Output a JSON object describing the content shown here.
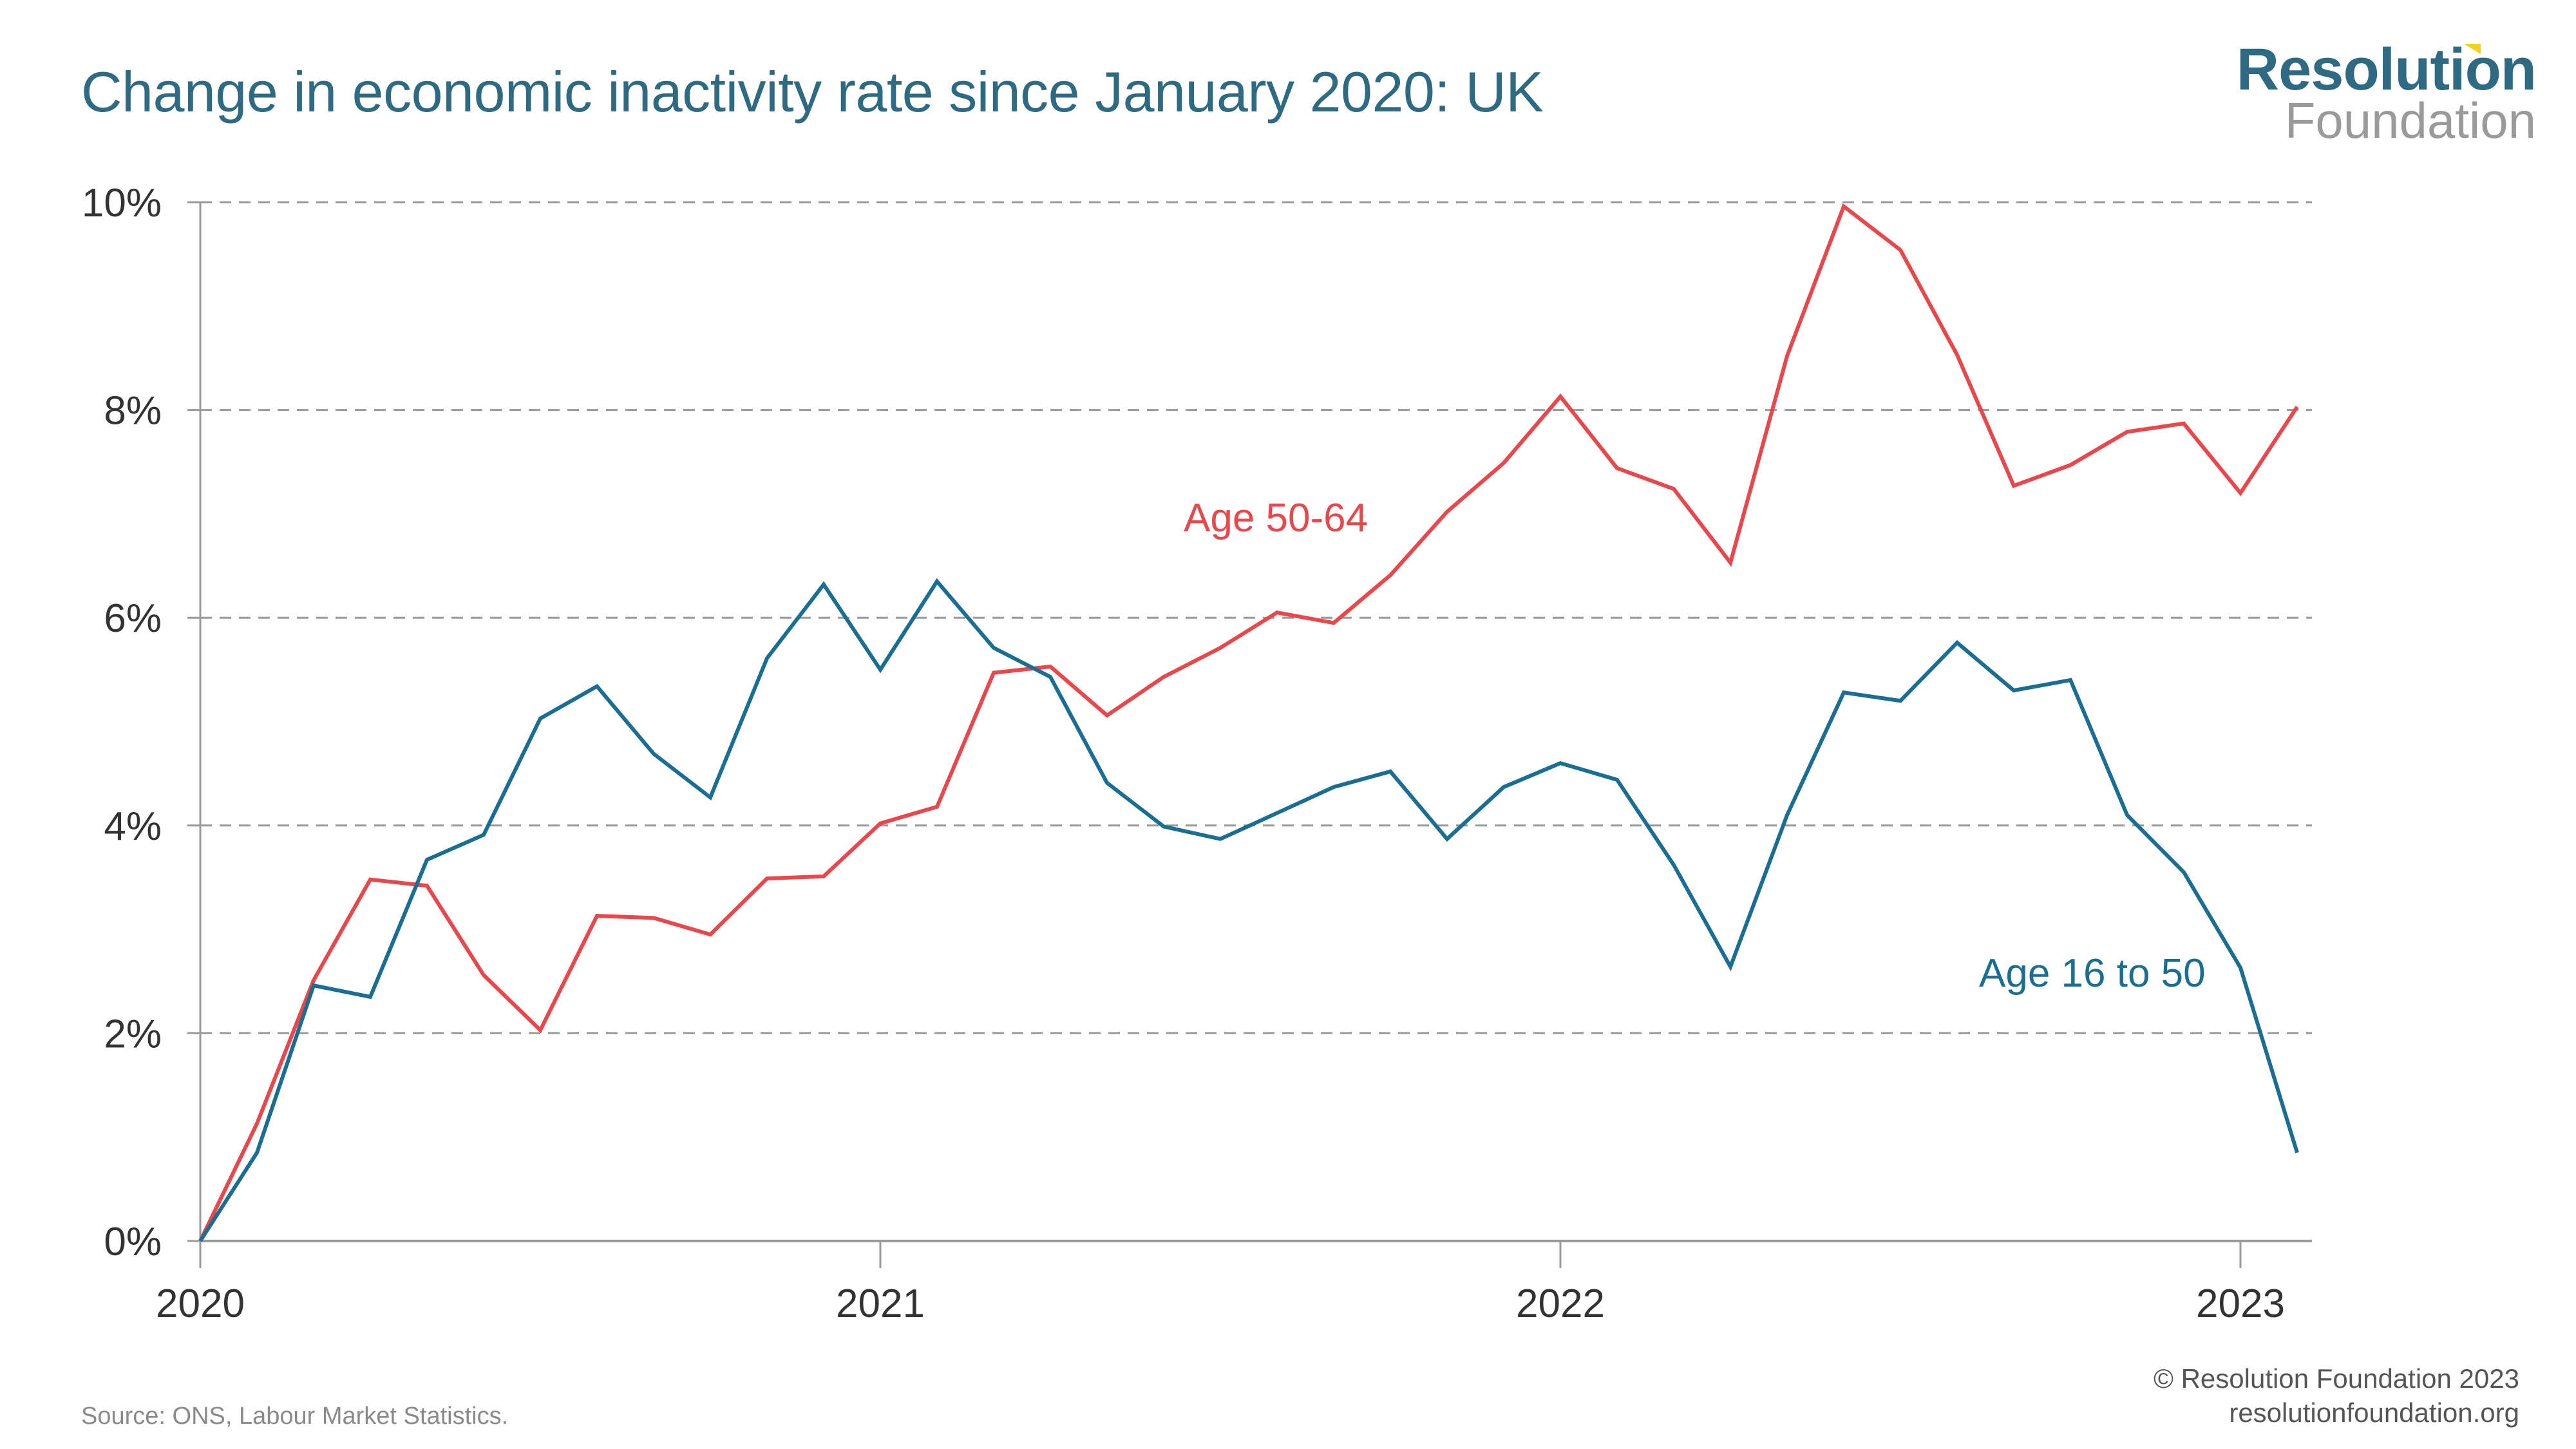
{
  "header": {
    "title": "Change in economic inactivity rate since January 2020: UK",
    "logo_top": "Resolution",
    "logo_bottom": "Foundation"
  },
  "footer": {
    "source": "Source: ONS, Labour Market Statistics.",
    "copyright": "© Resolution Foundation 2023",
    "website": "resolutionfoundation.org"
  },
  "colors": {
    "title": "#2e6b82",
    "series_16_50": "#1a6e92",
    "series_50_64": "#e8474b",
    "grid": "#9a9a9a",
    "accent": "#f2d21b"
  },
  "chart_data": {
    "type": "line",
    "title": "Change in economic inactivity rate since January 2020: UK",
    "xlabel": "",
    "ylabel": "",
    "x_start": "2020-01",
    "x_frequency": "monthly",
    "x_ticks": [
      "2020",
      "2021",
      "2022",
      "2023"
    ],
    "y_ticks": [
      "0%",
      "2%",
      "4%",
      "6%",
      "8%",
      "10%"
    ],
    "ylim": [
      0,
      10
    ],
    "grid": "horizontal dashed",
    "series": [
      {
        "name": "Age 16 to 50",
        "label": "Age 16 to 50",
        "values": [
          0,
          0.85,
          2.46,
          2.35,
          3.67,
          3.91,
          5.03,
          5.34,
          4.69,
          4.27,
          5.61,
          6.32,
          5.5,
          6.35,
          5.71,
          5.43,
          4.41,
          3.99,
          3.87,
          4.12,
          4.37,
          4.52,
          3.87,
          4.37,
          4.6,
          4.44,
          3.62,
          2.64,
          4.1,
          5.28,
          5.2,
          5.76,
          5.3,
          5.4,
          4.1,
          3.55,
          2.63,
          0.85
        ]
      },
      {
        "name": "Age 50-64",
        "label": "Age 50-64",
        "values": [
          0,
          1.13,
          2.51,
          3.48,
          3.42,
          2.56,
          2.03,
          3.13,
          3.11,
          2.95,
          3.49,
          3.51,
          4.02,
          4.18,
          5.47,
          5.53,
          5.06,
          5.43,
          5.71,
          6.05,
          5.95,
          6.41,
          7.02,
          7.49,
          8.13,
          7.44,
          7.24,
          6.53,
          8.52,
          9.96,
          9.54,
          8.53,
          7.27,
          7.47,
          7.79,
          7.87,
          7.2,
          8.03
        ]
      }
    ]
  }
}
